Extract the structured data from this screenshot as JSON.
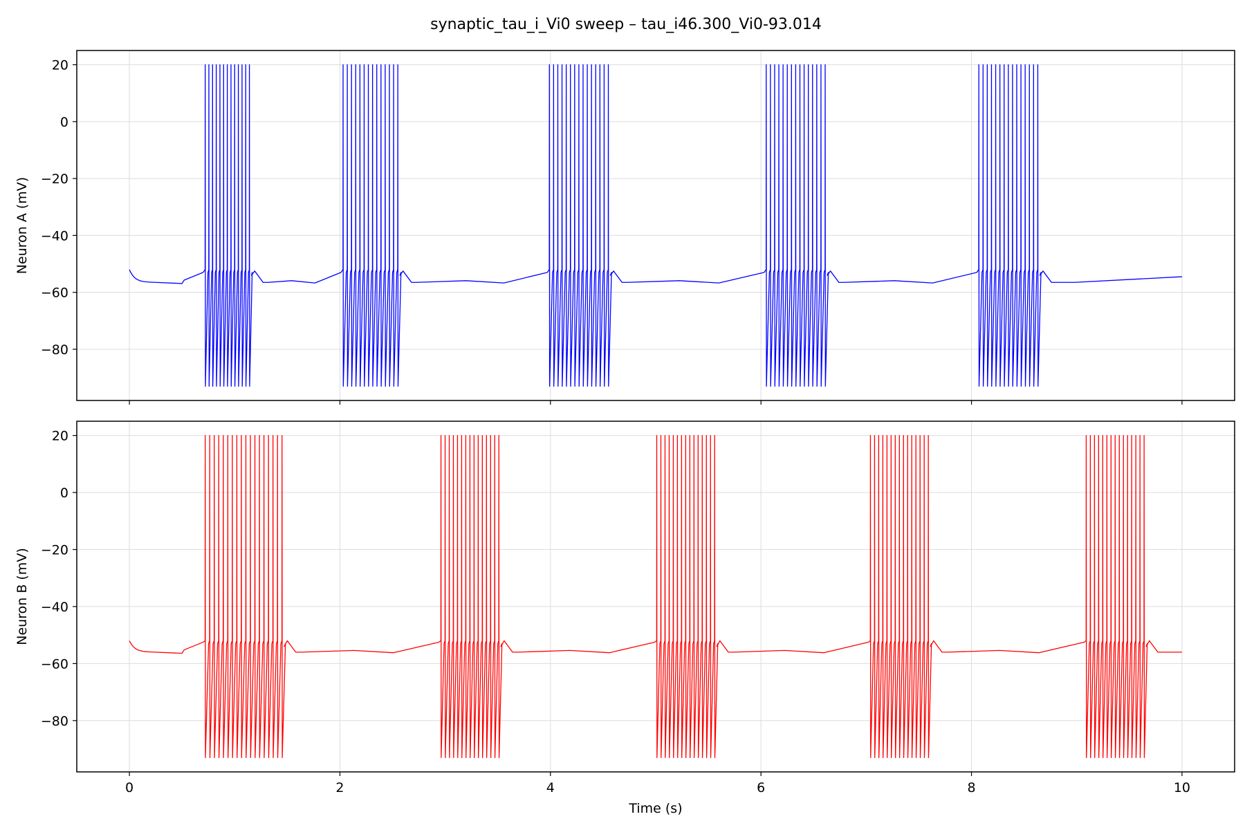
{
  "chart_data": {
    "type": "line",
    "title": "synaptic_tau_i_Vi0 sweep – tau_i46.300_Vi0-93.014",
    "xlabel": "Time (s)",
    "xlim": [
      -0.5,
      10.5
    ],
    "x_ticks": [
      0,
      2,
      4,
      6,
      8,
      10
    ],
    "x_tick_labels": [
      "0",
      "2",
      "4",
      "6",
      "8",
      "10"
    ],
    "grid": true,
    "panels": [
      {
        "ylabel": "Neuron A (mV)",
        "color": "#0000ff",
        "ylim": [
          -98,
          25
        ],
        "y_ticks": [
          20,
          0,
          -20,
          -40,
          -60,
          -80
        ],
        "y_tick_labels": [
          "20",
          "0",
          "−20",
          "−40",
          "−60",
          "−80"
        ],
        "bursts": [
          {
            "start": 0.72,
            "end": 1.14,
            "spikes": 13
          },
          {
            "start": 2.03,
            "end": 2.55,
            "spikes": 14
          },
          {
            "start": 3.99,
            "end": 4.55,
            "spikes": 15
          },
          {
            "start": 6.05,
            "end": 6.61,
            "spikes": 15
          },
          {
            "start": 8.07,
            "end": 8.63,
            "spikes": 15
          }
        ],
        "spike_peak": 20,
        "spike_trough": -93,
        "initial_v": -52,
        "rest_v": -56.5,
        "end_v": -54.5
      },
      {
        "ylabel": "Neuron B (mV)",
        "color": "#ff0000",
        "ylim": [
          -98,
          25
        ],
        "y_ticks": [
          20,
          0,
          -20,
          -40,
          -60,
          -80
        ],
        "y_tick_labels": [
          "20",
          "0",
          "−20",
          "−40",
          "−60",
          "−80"
        ],
        "bursts": [
          {
            "start": 0.72,
            "end": 1.45,
            "spikes": 18
          },
          {
            "start": 2.96,
            "end": 3.51,
            "spikes": 15
          },
          {
            "start": 5.01,
            "end": 5.56,
            "spikes": 15
          },
          {
            "start": 7.04,
            "end": 7.59,
            "spikes": 15
          },
          {
            "start": 9.09,
            "end": 9.64,
            "spikes": 15
          }
        ],
        "spike_peak": 20,
        "spike_trough": -93,
        "initial_v": -52,
        "rest_v": -56,
        "end_v": -56
      }
    ]
  }
}
